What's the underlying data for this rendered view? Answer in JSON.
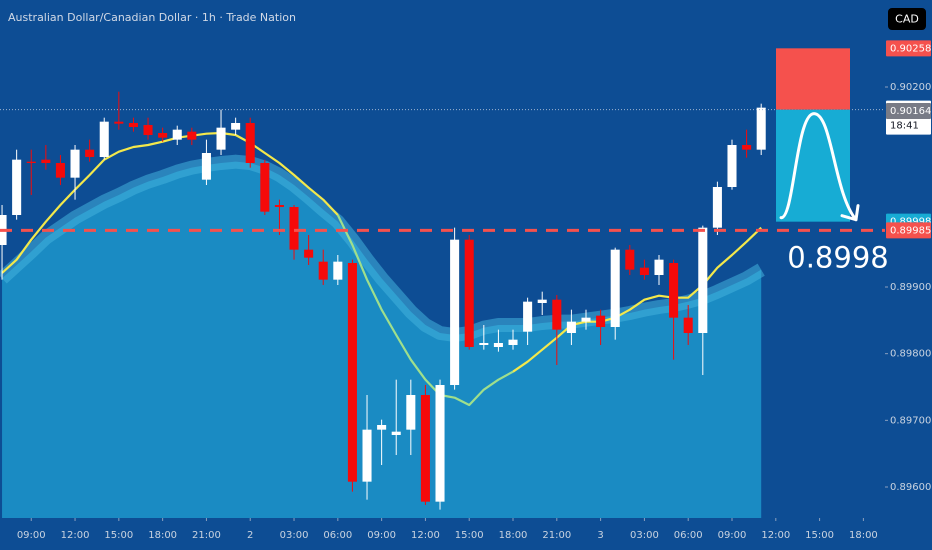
{
  "chart_data": {
    "type": "candlestick",
    "title": "Australian Dollar/Canadian Dollar · 1h · Trade Nation",
    "currency": "CAD",
    "countdown": "18:41",
    "annotation": "0.8998",
    "background": "#0d4d94",
    "up_color": "#ffffff",
    "down_color": "#f50a0a",
    "grid": false,
    "xlim": [
      -0.14,
      60.48
    ],
    "xticks": [
      {
        "value": 2,
        "label": "09:00"
      },
      {
        "value": 5,
        "label": "12:00"
      },
      {
        "value": 8,
        "label": "15:00"
      },
      {
        "value": 11,
        "label": "18:00"
      },
      {
        "value": 14,
        "label": "21:00"
      },
      {
        "value": 17,
        "label": "2"
      },
      {
        "value": 20,
        "label": "03:00"
      },
      {
        "value": 23,
        "label": "06:00"
      },
      {
        "value": 26,
        "label": "09:00"
      },
      {
        "value": 29,
        "label": "12:00"
      },
      {
        "value": 32,
        "label": "15:00"
      },
      {
        "value": 35,
        "label": "18:00"
      },
      {
        "value": 38,
        "label": "21:00"
      },
      {
        "value": 41,
        "label": "3"
      },
      {
        "value": 44,
        "label": "03:00"
      },
      {
        "value": 47,
        "label": "06:00"
      },
      {
        "value": 50,
        "label": "09:00"
      },
      {
        "value": 53,
        "label": "12:00"
      },
      {
        "value": 56,
        "label": "15:00"
      },
      {
        "value": 59,
        "label": "18:00"
      }
    ],
    "ylim": [
      0.895535,
      0.903305
    ],
    "yticks": [
      {
        "value": 0.902,
        "label": "0.90200"
      },
      {
        "value": 0.899,
        "label": "0.89900"
      },
      {
        "value": 0.898,
        "label": "0.89800"
      },
      {
        "value": 0.897,
        "label": "0.89700"
      },
      {
        "value": 0.896,
        "label": "0.89600"
      }
    ],
    "open": [
      0.89963,
      0.90008,
      0.90088,
      0.90091,
      0.90086,
      0.90064,
      0.90106,
      0.90095,
      0.90148,
      0.90146,
      0.90143,
      0.90131,
      0.90121,
      0.90133,
      0.90061,
      0.90106,
      0.90136,
      0.90146,
      0.90086,
      0.90023,
      0.9002,
      0.89956,
      0.89938,
      0.89911,
      0.89936,
      0.89608,
      0.89686,
      0.89678,
      0.89686,
      0.89738,
      0.89578,
      0.89753,
      0.89971,
      0.89813,
      0.8981,
      0.89813,
      0.89833,
      0.89876,
      0.89881,
      0.89831,
      0.89848,
      0.89857,
      0.8984,
      0.89956,
      0.89929,
      0.89918,
      0.89936,
      0.89854,
      0.89831,
      0.89989,
      0.9005,
      0.90113,
      0.90106
    ],
    "high": [
      0.90023,
      0.90106,
      0.90106,
      0.90113,
      0.90098,
      0.90113,
      0.90121,
      0.90154,
      0.90193,
      0.90154,
      0.90154,
      0.90139,
      0.90142,
      0.90139,
      0.90121,
      0.90166,
      0.90154,
      0.90154,
      0.90091,
      0.90031,
      0.90023,
      0.89978,
      0.89956,
      0.89948,
      0.89941,
      0.89738,
      0.89701,
      0.89761,
      0.89761,
      0.89753,
      0.89761,
      0.89989,
      0.89978,
      0.89843,
      0.89836,
      0.89836,
      0.89884,
      0.89893,
      0.89888,
      0.89866,
      0.89866,
      0.89866,
      0.89959,
      0.89963,
      0.89941,
      0.89948,
      0.89941,
      0.89873,
      0.89992,
      0.90058,
      0.90121,
      0.90136,
      0.90175
    ],
    "low": [
      0.89911,
      0.90001,
      0.90038,
      0.90076,
      0.90053,
      0.90031,
      0.90088,
      0.90091,
      0.90136,
      0.90133,
      0.90121,
      0.90118,
      0.90113,
      0.90113,
      0.90053,
      0.90098,
      0.90128,
      0.90079,
      0.90008,
      0.89978,
      0.89941,
      0.89933,
      0.89903,
      0.89903,
      0.89593,
      0.89581,
      0.89633,
      0.89648,
      0.89648,
      0.89573,
      0.89566,
      0.89746,
      0.89806,
      0.89806,
      0.89803,
      0.89806,
      0.89813,
      0.89858,
      0.89783,
      0.89813,
      0.89836,
      0.89813,
      0.89821,
      0.89918,
      0.89911,
      0.89903,
      0.89791,
      0.89813,
      0.89768,
      0.89978,
      0.90046,
      0.90094,
      0.90098
    ],
    "close": [
      0.90008,
      0.90091,
      0.90086,
      0.90086,
      0.90064,
      0.90106,
      0.90095,
      0.90148,
      0.90145,
      0.9014,
      0.90128,
      0.90124,
      0.90136,
      0.90121,
      0.90101,
      0.90139,
      0.90146,
      0.90086,
      0.90013,
      0.9002,
      0.89956,
      0.89944,
      0.89911,
      0.89938,
      0.89608,
      0.89686,
      0.89693,
      0.89683,
      0.89738,
      0.89578,
      0.89753,
      0.89971,
      0.8981,
      0.89816,
      0.89816,
      0.89821,
      0.89878,
      0.89881,
      0.89836,
      0.89848,
      0.89854,
      0.8984,
      0.89956,
      0.89926,
      0.89918,
      0.89941,
      0.89854,
      0.89831,
      0.89989,
      0.9005,
      0.90113,
      0.90106,
      0.90169
    ],
    "area": {
      "color": "#1a8bc3",
      "edge_color": "#43b2dc",
      "values": [
        0.89913,
        0.89933,
        0.89953,
        0.89974,
        0.89989,
        0.90004,
        0.90016,
        0.90028,
        0.90038,
        0.90049,
        0.90058,
        0.90065,
        0.90073,
        0.90079,
        0.90083,
        0.90086,
        0.90088,
        0.90086,
        0.90079,
        0.90068,
        0.90053,
        0.90035,
        0.90016,
        0.89998,
        0.89971,
        0.89941,
        0.89913,
        0.89888,
        0.89863,
        0.89843,
        0.89831,
        0.89828,
        0.89831,
        0.89839,
        0.89843,
        0.89843,
        0.89843,
        0.89846,
        0.89848,
        0.89848,
        0.89851,
        0.89854,
        0.89857,
        0.89861,
        0.89866,
        0.8987,
        0.89873,
        0.89878,
        0.89884,
        0.89893,
        0.89903,
        0.89913,
        0.89926
      ]
    },
    "series": [
      {
        "color": "#f3e84b",
        "values": [
          0.89921,
          0.89941,
          0.89971,
          0.89998,
          0.90023,
          0.90046,
          0.90068,
          0.90091,
          0.90103,
          0.9011,
          0.90113,
          0.90118,
          0.90124,
          0.90127,
          0.9013,
          0.90131,
          0.90128,
          0.90116,
          0.90101,
          0.90086,
          0.90068,
          0.90049,
          0.90031,
          0.90008,
          null,
          null,
          null,
          null,
          null,
          null,
          null,
          null,
          null,
          null,
          null,
          0.89773,
          0.89788,
          0.89806,
          0.89824,
          0.89843,
          0.89848,
          0.89848,
          0.89854,
          0.89866,
          0.89881,
          0.89887,
          0.89884,
          0.89884,
          0.89903,
          0.89929,
          0.89948,
          0.89968,
          0.89989
        ]
      },
      {
        "color": "#9fdf8c",
        "values": [
          null,
          null,
          null,
          null,
          null,
          null,
          null,
          null,
          null,
          null,
          null,
          null,
          null,
          null,
          null,
          null,
          null,
          null,
          null,
          null,
          null,
          null,
          null,
          0.90008,
          0.89963,
          0.89911,
          0.89866,
          0.89828,
          0.89791,
          0.89761,
          0.89738,
          0.89734,
          0.89723,
          0.89746,
          0.89761,
          0.89773,
          null,
          null,
          null,
          null,
          null,
          null,
          null,
          null,
          null,
          null,
          null,
          null,
          null,
          null,
          null,
          null,
          null
        ]
      }
    ],
    "position": {
      "stop": 0.90258,
      "entry": 0.90166,
      "target": 0.89998,
      "stop_color": "#f5514d",
      "target_color": "#17acd4"
    },
    "price_labels": [
      {
        "value": 0.90258,
        "color": "#f5514d",
        "text_color": "#ffffff"
      },
      {
        "value": 0.90166,
        "color": "#ffffff",
        "text_color": "#131722",
        "line": "dotted"
      },
      {
        "value": 0.90164,
        "color": "#787b86",
        "text_color": "#ffffff"
      },
      {
        "value": 0.89998,
        "color": "#17acd4",
        "text_color": "#ffffff"
      },
      {
        "value": 0.89985,
        "color": "#f5514d",
        "text_color": "#ffffff",
        "line": "dashed"
      }
    ]
  }
}
